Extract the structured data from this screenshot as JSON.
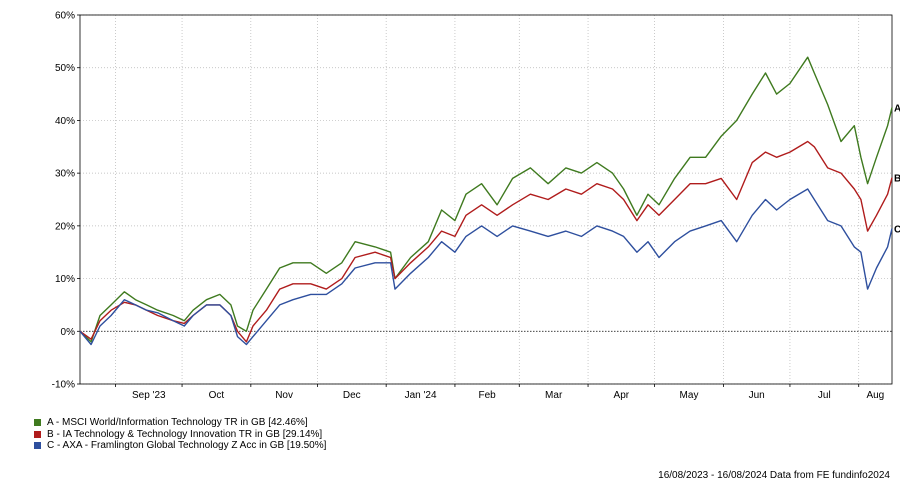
{
  "chart_data": {
    "type": "line",
    "yunit": "%",
    "yticks": [
      60,
      50,
      40,
      30,
      20,
      10,
      0,
      -10
    ],
    "ytick_labels": [
      "60%",
      "50%",
      "40%",
      "30%",
      "20%",
      "10%",
      "0%",
      "-10%"
    ],
    "ylim": [
      -10,
      60
    ],
    "x_range": [
      "2023-08-16",
      "2024-08-16"
    ],
    "month_ticks": [
      {
        "label": "Sep '23",
        "date": "2023-09-01"
      },
      {
        "label": "Oct",
        "date": "2023-10-01"
      },
      {
        "label": "Nov",
        "date": "2023-11-01"
      },
      {
        "label": "Dec",
        "date": "2023-12-01"
      },
      {
        "label": "Jan '24",
        "date": "2024-01-01"
      },
      {
        "label": "Feb",
        "date": "2024-02-01"
      },
      {
        "label": "Mar",
        "date": "2024-03-01"
      },
      {
        "label": "Apr",
        "date": "2024-04-01"
      },
      {
        "label": "May",
        "date": "2024-05-01"
      },
      {
        "label": "Jun",
        "date": "2024-06-01"
      },
      {
        "label": "Jul",
        "date": "2024-07-01"
      },
      {
        "label": "Aug",
        "date": "2024-08-01"
      }
    ],
    "grid": true,
    "zero_line": true,
    "series": [
      {
        "name": "A - MSCI World/Information Technology TR in GB [42.46%]",
        "end_label": "A",
        "color": "#3f7a1f",
        "points": [
          [
            "2023-08-16",
            0
          ],
          [
            "2023-08-21",
            -2
          ],
          [
            "2023-08-25",
            3
          ],
          [
            "2023-08-30",
            5
          ],
          [
            "2023-09-05",
            7.5
          ],
          [
            "2023-09-10",
            6
          ],
          [
            "2023-09-15",
            5
          ],
          [
            "2023-09-20",
            4
          ],
          [
            "2023-09-27",
            3
          ],
          [
            "2023-10-02",
            2
          ],
          [
            "2023-10-06",
            4
          ],
          [
            "2023-10-12",
            6
          ],
          [
            "2023-10-18",
            7
          ],
          [
            "2023-10-23",
            5
          ],
          [
            "2023-10-26",
            1
          ],
          [
            "2023-10-30",
            0
          ],
          [
            "2023-11-02",
            4
          ],
          [
            "2023-11-08",
            8
          ],
          [
            "2023-11-14",
            12
          ],
          [
            "2023-11-20",
            13
          ],
          [
            "2023-11-28",
            13
          ],
          [
            "2023-12-05",
            11
          ],
          [
            "2023-12-12",
            13
          ],
          [
            "2023-12-18",
            17
          ],
          [
            "2023-12-27",
            16
          ],
          [
            "2024-01-03",
            15
          ],
          [
            "2024-01-05",
            10
          ],
          [
            "2024-01-12",
            14
          ],
          [
            "2024-01-20",
            17
          ],
          [
            "2024-01-26",
            23
          ],
          [
            "2024-02-01",
            21
          ],
          [
            "2024-02-06",
            26
          ],
          [
            "2024-02-13",
            28
          ],
          [
            "2024-02-20",
            24
          ],
          [
            "2024-02-27",
            29
          ],
          [
            "2024-03-06",
            31
          ],
          [
            "2024-03-14",
            28
          ],
          [
            "2024-03-22",
            31
          ],
          [
            "2024-03-29",
            30
          ],
          [
            "2024-04-05",
            32
          ],
          [
            "2024-04-12",
            30
          ],
          [
            "2024-04-17",
            27
          ],
          [
            "2024-04-23",
            22
          ],
          [
            "2024-04-28",
            26
          ],
          [
            "2024-05-03",
            24
          ],
          [
            "2024-05-10",
            29
          ],
          [
            "2024-05-17",
            33
          ],
          [
            "2024-05-24",
            33
          ],
          [
            "2024-05-31",
            37
          ],
          [
            "2024-06-07",
            40
          ],
          [
            "2024-06-14",
            45
          ],
          [
            "2024-06-20",
            49
          ],
          [
            "2024-06-25",
            45
          ],
          [
            "2024-07-01",
            47
          ],
          [
            "2024-07-09",
            52
          ],
          [
            "2024-07-12",
            49
          ],
          [
            "2024-07-18",
            43
          ],
          [
            "2024-07-24",
            36
          ],
          [
            "2024-07-30",
            39
          ],
          [
            "2024-08-02",
            33
          ],
          [
            "2024-08-05",
            28
          ],
          [
            "2024-08-09",
            33
          ],
          [
            "2024-08-14",
            39
          ],
          [
            "2024-08-16",
            42.46
          ]
        ]
      },
      {
        "name": "B - IA Technology & Technology Innovation TR in GB [29.14%]",
        "end_label": "B",
        "color": "#b01c1c",
        "points": [
          [
            "2023-08-16",
            0
          ],
          [
            "2023-08-21",
            -1.5
          ],
          [
            "2023-08-25",
            2
          ],
          [
            "2023-08-30",
            4
          ],
          [
            "2023-09-05",
            5.5
          ],
          [
            "2023-09-10",
            5
          ],
          [
            "2023-09-15",
            4
          ],
          [
            "2023-09-20",
            3
          ],
          [
            "2023-09-27",
            2
          ],
          [
            "2023-10-02",
            1.5
          ],
          [
            "2023-10-06",
            3
          ],
          [
            "2023-10-12",
            5
          ],
          [
            "2023-10-18",
            5
          ],
          [
            "2023-10-23",
            3
          ],
          [
            "2023-10-26",
            0
          ],
          [
            "2023-10-30",
            -2
          ],
          [
            "2023-11-02",
            1
          ],
          [
            "2023-11-08",
            4
          ],
          [
            "2023-11-14",
            8
          ],
          [
            "2023-11-20",
            9
          ],
          [
            "2023-11-28",
            9
          ],
          [
            "2023-12-05",
            8
          ],
          [
            "2023-12-12",
            10
          ],
          [
            "2023-12-18",
            14
          ],
          [
            "2023-12-27",
            15
          ],
          [
            "2024-01-03",
            14
          ],
          [
            "2024-01-05",
            10
          ],
          [
            "2024-01-12",
            13
          ],
          [
            "2024-01-20",
            16
          ],
          [
            "2024-01-26",
            19
          ],
          [
            "2024-02-01",
            18
          ],
          [
            "2024-02-06",
            22
          ],
          [
            "2024-02-13",
            24
          ],
          [
            "2024-02-20",
            22
          ],
          [
            "2024-02-27",
            24
          ],
          [
            "2024-03-06",
            26
          ],
          [
            "2024-03-14",
            25
          ],
          [
            "2024-03-22",
            27
          ],
          [
            "2024-03-29",
            26
          ],
          [
            "2024-04-05",
            28
          ],
          [
            "2024-04-12",
            27
          ],
          [
            "2024-04-17",
            25
          ],
          [
            "2024-04-23",
            21
          ],
          [
            "2024-04-28",
            24
          ],
          [
            "2024-05-03",
            22
          ],
          [
            "2024-05-10",
            25
          ],
          [
            "2024-05-17",
            28
          ],
          [
            "2024-05-24",
            28
          ],
          [
            "2024-05-31",
            29
          ],
          [
            "2024-06-07",
            25
          ],
          [
            "2024-06-14",
            32
          ],
          [
            "2024-06-20",
            34
          ],
          [
            "2024-06-25",
            33
          ],
          [
            "2024-07-01",
            34
          ],
          [
            "2024-07-09",
            36
          ],
          [
            "2024-07-12",
            35
          ],
          [
            "2024-07-18",
            31
          ],
          [
            "2024-07-24",
            30
          ],
          [
            "2024-07-30",
            27
          ],
          [
            "2024-08-02",
            25
          ],
          [
            "2024-08-05",
            19
          ],
          [
            "2024-08-09",
            22
          ],
          [
            "2024-08-14",
            26
          ],
          [
            "2024-08-16",
            29.14
          ]
        ]
      },
      {
        "name": "C - AXA - Framlington Global Technology Z Acc in GB [19.50%]",
        "end_label": "C",
        "color": "#2e4f9e",
        "points": [
          [
            "2023-08-16",
            0
          ],
          [
            "2023-08-21",
            -2.5
          ],
          [
            "2023-08-25",
            1
          ],
          [
            "2023-08-30",
            3
          ],
          [
            "2023-09-05",
            6
          ],
          [
            "2023-09-10",
            5
          ],
          [
            "2023-09-15",
            4
          ],
          [
            "2023-09-20",
            3.5
          ],
          [
            "2023-09-27",
            2
          ],
          [
            "2023-10-02",
            1
          ],
          [
            "2023-10-06",
            3
          ],
          [
            "2023-10-12",
            5
          ],
          [
            "2023-10-18",
            5
          ],
          [
            "2023-10-23",
            3
          ],
          [
            "2023-10-26",
            -1
          ],
          [
            "2023-10-30",
            -2.5
          ],
          [
            "2023-11-02",
            -1
          ],
          [
            "2023-11-08",
            2
          ],
          [
            "2023-11-14",
            5
          ],
          [
            "2023-11-20",
            6
          ],
          [
            "2023-11-28",
            7
          ],
          [
            "2023-12-05",
            7
          ],
          [
            "2023-12-12",
            9
          ],
          [
            "2023-12-18",
            12
          ],
          [
            "2023-12-27",
            13
          ],
          [
            "2024-01-03",
            13
          ],
          [
            "2024-01-05",
            8
          ],
          [
            "2024-01-12",
            11
          ],
          [
            "2024-01-20",
            14
          ],
          [
            "2024-01-26",
            17
          ],
          [
            "2024-02-01",
            15
          ],
          [
            "2024-02-06",
            18
          ],
          [
            "2024-02-13",
            20
          ],
          [
            "2024-02-20",
            18
          ],
          [
            "2024-02-27",
            20
          ],
          [
            "2024-03-06",
            19
          ],
          [
            "2024-03-14",
            18
          ],
          [
            "2024-03-22",
            19
          ],
          [
            "2024-03-29",
            18
          ],
          [
            "2024-04-05",
            20
          ],
          [
            "2024-04-12",
            19
          ],
          [
            "2024-04-17",
            18
          ],
          [
            "2024-04-23",
            15
          ],
          [
            "2024-04-28",
            17
          ],
          [
            "2024-05-03",
            14
          ],
          [
            "2024-05-10",
            17
          ],
          [
            "2024-05-17",
            19
          ],
          [
            "2024-05-24",
            20
          ],
          [
            "2024-05-31",
            21
          ],
          [
            "2024-06-07",
            17
          ],
          [
            "2024-06-14",
            22
          ],
          [
            "2024-06-20",
            25
          ],
          [
            "2024-06-25",
            23
          ],
          [
            "2024-07-01",
            25
          ],
          [
            "2024-07-09",
            27
          ],
          [
            "2024-07-12",
            25
          ],
          [
            "2024-07-18",
            21
          ],
          [
            "2024-07-24",
            20
          ],
          [
            "2024-07-30",
            16
          ],
          [
            "2024-08-02",
            15
          ],
          [
            "2024-08-05",
            8
          ],
          [
            "2024-08-09",
            12
          ],
          [
            "2024-08-14",
            16
          ],
          [
            "2024-08-16",
            19.5
          ]
        ]
      }
    ]
  },
  "legend": {
    "items": [
      {
        "label": "A - MSCI World/Information Technology TR in GB [42.46%]",
        "color": "#3f7a1f"
      },
      {
        "label": "B - IA Technology & Technology Innovation TR in GB [29.14%]",
        "color": "#b01c1c"
      },
      {
        "label": "C - AXA - Framlington Global Technology Z Acc in GB [19.50%]",
        "color": "#2e4f9e"
      }
    ]
  },
  "footer": {
    "text": "16/08/2023 - 16/08/2024 Data from FE fundinfo2024"
  }
}
